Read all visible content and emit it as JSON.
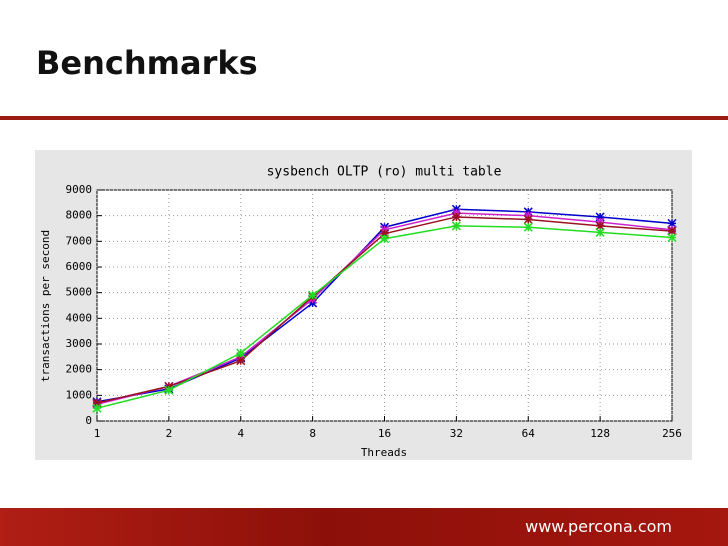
{
  "header": {
    "title": "Benchmarks"
  },
  "chart_data": {
    "type": "line",
    "title": "sysbench OLTP (ro) multi table",
    "xlabel": "Threads",
    "ylabel": "transactions per second",
    "x": [
      1,
      2,
      4,
      8,
      16,
      32,
      64,
      128,
      256
    ],
    "xscale": "log",
    "xlim": [
      1,
      256
    ],
    "xticks": [
      1,
      2,
      4,
      8,
      16,
      32,
      64,
      128,
      256
    ],
    "ylim": [
      0,
      9000
    ],
    "yticks": [
      0,
      1000,
      2000,
      3000,
      4000,
      5000,
      6000,
      7000,
      8000,
      9000
    ],
    "grid": true,
    "series": [
      {
        "color": "#0000cc",
        "values": [
          750,
          1250,
          2450,
          4600,
          7550,
          8250,
          8150,
          7950,
          7700
        ]
      },
      {
        "color": "#cc22cc",
        "values": [
          650,
          1350,
          2500,
          4750,
          7450,
          8100,
          8000,
          7750,
          7450
        ]
      },
      {
        "color": "#991122",
        "values": [
          700,
          1350,
          2350,
          4850,
          7300,
          7950,
          7850,
          7600,
          7400
        ]
      },
      {
        "color": "#22dd22",
        "values": [
          500,
          1200,
          2650,
          4900,
          7100,
          7600,
          7550,
          7350,
          7150
        ]
      }
    ]
  },
  "footer": {
    "url": "www.percona.com"
  }
}
